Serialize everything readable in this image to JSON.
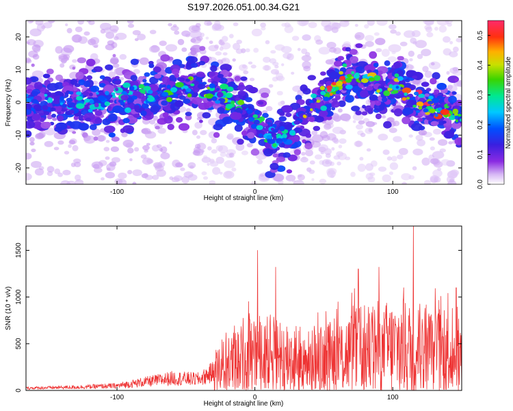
{
  "title": "S197.2026.051.00.34.G21",
  "colors": {
    "snr_line": "#ee3333",
    "axis": "#000000"
  },
  "chart_data": [
    {
      "type": "heatmap",
      "xlabel": "Height of straight line (km)",
      "ylabel": "Frequency (Hz)",
      "xlim": [
        -166,
        150
      ],
      "ylim": [
        -25,
        25
      ],
      "x_ticks": [
        -100,
        0,
        100
      ],
      "x_tick_labels": [
        "-100",
        "0",
        "100"
      ],
      "y_ticks": [
        -20,
        -10,
        0,
        10,
        20
      ],
      "y_tick_labels": [
        "-20",
        "-10",
        "0",
        "10",
        "20"
      ],
      "colorbar": {
        "label": "Normalized spectral amplitude",
        "range": [
          0,
          0.55
        ],
        "ticks": [
          0,
          0.1,
          0.2,
          0.3,
          0.4,
          0.5
        ],
        "tick_labels": [
          "0.0",
          "0.1",
          "0.2",
          "0.3",
          "0.4",
          "0.5"
        ],
        "colormap": "rainbow (white-violet-blue-cyan-green-yellow-red-magenta)"
      },
      "ridge_center_hz": [
        {
          "x": -166,
          "y": 0
        },
        {
          "x": -140,
          "y": 0
        },
        {
          "x": -120,
          "y": 1
        },
        {
          "x": -100,
          "y": 1
        },
        {
          "x": -80,
          "y": 2
        },
        {
          "x": -60,
          "y": 3
        },
        {
          "x": -45,
          "y": 6
        },
        {
          "x": -30,
          "y": 3
        },
        {
          "x": -15,
          "y": 1
        },
        {
          "x": -5,
          "y": -2
        },
        {
          "x": 5,
          "y": -8
        },
        {
          "x": 15,
          "y": -12
        },
        {
          "x": 25,
          "y": -10
        },
        {
          "x": 35,
          "y": -5
        },
        {
          "x": 45,
          "y": 0
        },
        {
          "x": 55,
          "y": 3
        },
        {
          "x": 65,
          "y": 8
        },
        {
          "x": 75,
          "y": 8
        },
        {
          "x": 85,
          "y": 5
        },
        {
          "x": 95,
          "y": 3
        },
        {
          "x": 105,
          "y": 5
        },
        {
          "x": 115,
          "y": 0
        },
        {
          "x": 130,
          "y": -1
        },
        {
          "x": 150,
          "y": -5
        }
      ],
      "ridge_peak_amplitude": [
        {
          "x": -166,
          "a": 0.15
        },
        {
          "x": -100,
          "a": 0.2
        },
        {
          "x": -45,
          "a": 0.3
        },
        {
          "x": -20,
          "a": 0.3
        },
        {
          "x": 0,
          "a": 0.25
        },
        {
          "x": 20,
          "a": 0.25
        },
        {
          "x": 40,
          "a": 0.35
        },
        {
          "x": 55,
          "a": 0.5
        },
        {
          "x": 70,
          "a": 0.35
        },
        {
          "x": 100,
          "a": 0.4
        },
        {
          "x": 115,
          "a": 0.45
        },
        {
          "x": 135,
          "a": 0.45
        },
        {
          "x": 145,
          "a": 0.5
        },
        {
          "x": 150,
          "a": 0.3
        }
      ]
    },
    {
      "type": "line",
      "xlabel": "Height of straight line (km)",
      "ylabel": "SNR (10 * v/v)",
      "xlim": [
        -166,
        150
      ],
      "ylim": [
        0,
        1760
      ],
      "x_ticks": [
        -100,
        0,
        100
      ],
      "x_tick_labels": [
        "-100",
        "0",
        "100"
      ],
      "y_ticks": [
        0,
        500,
        1000,
        1500
      ],
      "y_tick_labels": [
        "0",
        "500",
        "1000",
        "1500"
      ],
      "envelope_mean": [
        {
          "x": -166,
          "y": 25
        },
        {
          "x": -130,
          "y": 35
        },
        {
          "x": -100,
          "y": 50
        },
        {
          "x": -80,
          "y": 90
        },
        {
          "x": -60,
          "y": 130
        },
        {
          "x": -40,
          "y": 120
        },
        {
          "x": -30,
          "y": 200
        },
        {
          "x": -20,
          "y": 270
        },
        {
          "x": -10,
          "y": 330
        },
        {
          "x": 0,
          "y": 380
        },
        {
          "x": 20,
          "y": 380
        },
        {
          "x": 40,
          "y": 300
        },
        {
          "x": 60,
          "y": 360
        },
        {
          "x": 75,
          "y": 420
        },
        {
          "x": 90,
          "y": 450
        },
        {
          "x": 110,
          "y": 450
        },
        {
          "x": 130,
          "y": 420
        },
        {
          "x": 150,
          "y": 350
        }
      ],
      "peaks": [
        {
          "x": 2,
          "y": 1500
        },
        {
          "x": 15,
          "y": 1320
        },
        {
          "x": 75,
          "y": 1300
        },
        {
          "x": 90,
          "y": 1320
        },
        {
          "x": 108,
          "y": 1100
        },
        {
          "x": 115,
          "y": 1760
        },
        {
          "x": 140,
          "y": 1040
        },
        {
          "x": 146,
          "y": 1100
        }
      ]
    }
  ]
}
